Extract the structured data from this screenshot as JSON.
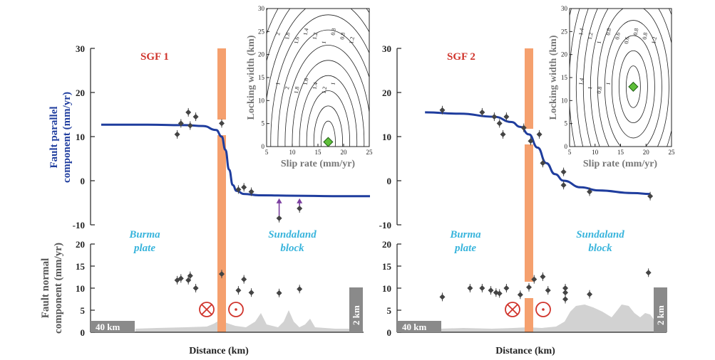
{
  "colors": {
    "model_line": "#1f3d9e",
    "fault_zone": "#f5a06e",
    "data_points": "#444444",
    "topography": "#cfcfcf",
    "arrow": "#7b3fa0",
    "optimum_marker": "#5fbf3a",
    "panel_title": "#d0342c",
    "region_label": "#38b4dc",
    "scale_box": "#8a8a8a"
  },
  "labels": {
    "y_parallel": [
      "Fault parallel",
      "component (mm/yr)"
    ],
    "y_normal": [
      "Fault normal",
      "component (mm/yr)"
    ],
    "x_distance": "Distance (km)",
    "region_left": [
      "Burma",
      "plate"
    ],
    "region_right": [
      "Sundaland",
      "block"
    ],
    "scale_horizontal": "40 km",
    "scale_vertical": "2 km",
    "inset_x": "Slip rate (mm/yr)",
    "inset_y": "Locking width (km)"
  },
  "chart_data": [
    {
      "type": "scatter",
      "panel": "SGF 1",
      "title": "SGF 1",
      "xlabel": "Distance (km)",
      "parallel": {
        "ylim": [
          -10,
          30
        ],
        "yticks": [
          -10,
          0,
          10,
          20,
          30
        ],
        "points_x": [
          -24,
          -22,
          -18,
          -17,
          -14,
          0,
          9,
          12,
          16,
          31,
          42
        ],
        "points_y": [
          10.5,
          13,
          15.5,
          12.5,
          14.5,
          13,
          -2,
          -1.5,
          -2.5,
          -8.5,
          -6.3
        ],
        "arrows_x": [
          31,
          42
        ],
        "model_x": [
          -65,
          -40,
          -20,
          -10,
          -3,
          0,
          2,
          4,
          6,
          8,
          12,
          20,
          40,
          60,
          80
        ],
        "model_y": [
          12.7,
          12.7,
          12.6,
          12.4,
          11.5,
          10,
          7,
          2.5,
          -1,
          -2.3,
          -3,
          -3.3,
          -3.4,
          -3.5,
          -3.5
        ]
      },
      "normal": {
        "ylim": [
          0,
          20
        ],
        "yticks": [
          0,
          5,
          10,
          15,
          20
        ],
        "points_x": [
          -24,
          -22,
          -18,
          -17,
          -14,
          0,
          9,
          12,
          16,
          31,
          42
        ],
        "points_y": [
          11.8,
          12.2,
          11.8,
          12.8,
          10,
          13.2,
          9.5,
          12,
          9,
          8.9,
          9.8
        ]
      },
      "inset": {
        "type": "contour",
        "xlabel": "Slip rate (mm/yr)",
        "ylabel": "Locking width (km)",
        "xlim": [
          5,
          25
        ],
        "ylim": [
          0,
          30
        ],
        "xticks": [
          5,
          10,
          15,
          20,
          25
        ],
        "yticks": [
          0,
          5,
          10,
          15,
          20,
          25,
          30
        ],
        "optimum": [
          17,
          1
        ],
        "contour_labels": [
          "2",
          "1.8",
          "1.6",
          "1.4",
          "1.2",
          "1",
          "0.8",
          "0.8",
          "1.2",
          "1",
          "2",
          "1.8",
          "1.6",
          "1.4",
          "1.2",
          "1"
        ]
      }
    },
    {
      "type": "scatter",
      "panel": "SGF 2",
      "title": "SGF 2",
      "xlabel": "Distance (km)",
      "parallel": {
        "ylim": [
          -10,
          30
        ],
        "yticks": [
          -10,
          0,
          10,
          20,
          30
        ],
        "points_x": [
          -50,
          -27,
          -20,
          -17,
          -15,
          -13,
          -3,
          1,
          6,
          8,
          20,
          20,
          35,
          70
        ],
        "points_y": [
          16,
          15.5,
          14.5,
          13,
          10.5,
          14.5,
          12,
          9,
          10.5,
          4,
          2,
          -1,
          -2.5,
          -3.5
        ],
        "model_x": [
          -60,
          -40,
          -20,
          -10,
          -5,
          0,
          5,
          10,
          15,
          20,
          30,
          40,
          60,
          70
        ],
        "model_y": [
          15.5,
          15.2,
          14.5,
          13.3,
          12.2,
          10.5,
          7.5,
          4,
          1.5,
          0,
          -1.5,
          -2.2,
          -2.8,
          -3
        ]
      },
      "normal": {
        "ylim": [
          0,
          20
        ],
        "yticks": [
          0,
          5,
          10,
          15,
          20
        ],
        "points_x": [
          -50,
          -34,
          -27,
          -22,
          -19,
          -17,
          -13,
          -5,
          0,
          3,
          8,
          11,
          21,
          21,
          21,
          35,
          69
        ],
        "points_y": [
          8,
          10,
          10,
          9.5,
          9,
          8.8,
          10,
          8.5,
          10.2,
          12,
          12.6,
          9.5,
          10,
          7.5,
          9,
          8.6,
          13.5
        ]
      },
      "inset": {
        "type": "contour",
        "xlabel": "Slip rate (mm/yr)",
        "ylabel": "Locking width (km)",
        "xlim": [
          5,
          25
        ],
        "ylim": [
          0,
          30
        ],
        "xticks": [
          5,
          10,
          15,
          20,
          25
        ],
        "yticks": [
          0,
          5,
          10,
          15,
          20,
          25,
          30
        ],
        "optimum": [
          17.5,
          13
        ],
        "contour_labels": [
          "1.4",
          "1.2",
          "1",
          "0.8",
          "0.6",
          "0.6",
          "0.8",
          "0.8",
          "1.2",
          "1.4",
          "1",
          "0.8",
          "1"
        ]
      }
    }
  ]
}
